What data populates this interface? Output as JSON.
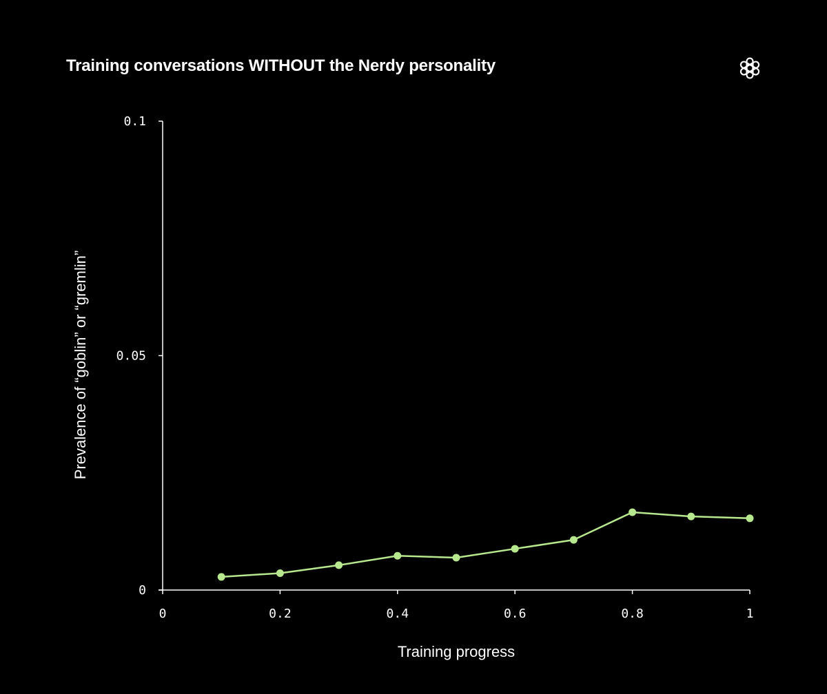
{
  "title": "Training conversations WITHOUT the Nerdy personality",
  "logo_icon": "openai-logo-icon",
  "colors": {
    "background": "#000000",
    "text": "#ffffff",
    "axis": "#ffffff",
    "series": "#b8e88e"
  },
  "chart_data": {
    "type": "line",
    "xlabel": "Training progress",
    "ylabel": "Prevalence of “goblin” or “gremlin”",
    "xlim": [
      0,
      1
    ],
    "ylim": [
      0,
      0.1
    ],
    "x_ticks": [
      "0",
      "0.2",
      "0.4",
      "0.6",
      "0.8",
      "1"
    ],
    "x_tick_values": [
      0,
      0.2,
      0.4,
      0.6,
      0.8,
      1
    ],
    "y_ticks": [
      "0",
      "0.05",
      "0.1"
    ],
    "y_tick_values": [
      0,
      0.05,
      0.1
    ],
    "grid": false,
    "legend": "none",
    "series": [
      {
        "x": [
          0.1,
          0.2,
          0.3,
          0.4,
          0.5,
          0.6,
          0.7,
          0.8,
          0.9,
          1.0
        ],
        "y": [
          0.0028,
          0.0036,
          0.0053,
          0.0073,
          0.0069,
          0.0088,
          0.0107,
          0.0166,
          0.0157,
          0.0153
        ]
      }
    ]
  }
}
